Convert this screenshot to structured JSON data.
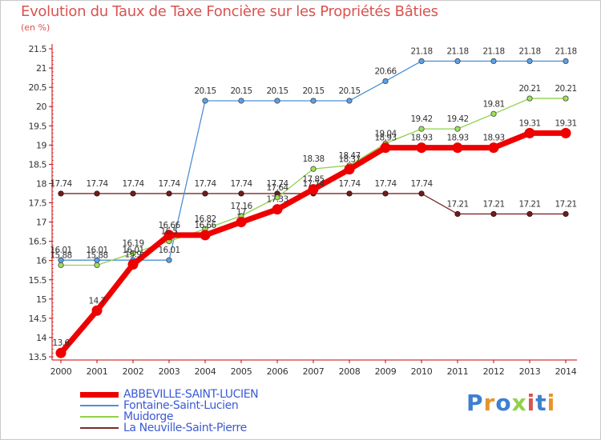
{
  "chart_data": {
    "type": "line",
    "title": "Evolution du Taux de Taxe Foncière sur les Propriétés Bâties",
    "unit": "(en %)",
    "x": [
      "2000",
      "2001",
      "2002",
      "2003",
      "2004",
      "2005",
      "2006",
      "2007",
      "2008",
      "2009",
      "2010",
      "2011",
      "2012",
      "2013",
      "2014"
    ],
    "ylim": [
      13.5,
      21.5
    ],
    "yticks": [
      "13.5",
      "14",
      "14.5",
      "15",
      "15.5",
      "16",
      "16.5",
      "17",
      "17.5",
      "18",
      "18.5",
      "19",
      "19.5",
      "20",
      "20.5",
      "21",
      "21.5"
    ],
    "grid": false,
    "legend_position": "bottom-left",
    "series": [
      {
        "name": "ABBEVILLE-SAINT-LUCIEN",
        "color": "#ee0000",
        "values": [
          13.6,
          14.7,
          15.9,
          16.66,
          16.66,
          17.0,
          17.33,
          17.85,
          18.37,
          18.93,
          18.93,
          18.93,
          18.93,
          19.31,
          19.31
        ],
        "labels": [
          "13.6",
          "14.7",
          "15.9",
          "16.66",
          "16.66",
          "17",
          "17.33",
          "17.85",
          "18.37",
          "18.93",
          "18.93",
          "18.93",
          "18.93",
          "19.31",
          "19.31"
        ]
      },
      {
        "name": "Fontaine-Saint-Lucien",
        "color": "#4a90d6",
        "values": [
          16.01,
          16.01,
          16.01,
          16.01,
          20.15,
          20.15,
          20.15,
          20.15,
          20.15,
          20.66,
          21.18,
          21.18,
          21.18,
          21.18,
          21.18
        ],
        "labels": [
          "16.01",
          "16.01",
          "16.01",
          "16.01",
          "20.15",
          "20.15",
          "20.15",
          "20.15",
          "20.15",
          "20.66",
          "21.18",
          "21.18",
          "21.18",
          "21.18",
          "21.18"
        ]
      },
      {
        "name": "Muidorge",
        "color": "#8fd24a",
        "values": [
          15.88,
          15.88,
          16.19,
          16.5,
          16.82,
          17.16,
          17.64,
          18.38,
          18.47,
          19.04,
          19.42,
          19.42,
          19.81,
          20.21,
          20.21
        ],
        "labels": [
          "15.88",
          "15.88",
          "16.19",
          "16.5",
          "16.82",
          "17.16",
          "17.64",
          "18.38",
          "18.47",
          "19.04",
          "19.42",
          "19.42",
          "19.81",
          "20.21",
          "20.21"
        ]
      },
      {
        "name": "La Neuville-Saint-Pierre",
        "color": "#7a2a2a",
        "values": [
          17.74,
          17.74,
          17.74,
          17.74,
          17.74,
          17.74,
          17.74,
          17.74,
          17.74,
          17.74,
          17.74,
          17.21,
          17.21,
          17.21,
          17.21
        ],
        "labels": [
          "17.74",
          "17.74",
          "17.74",
          "17.74",
          "17.74",
          "17.74",
          "17.74",
          "17.74",
          "17.74",
          "17.74",
          "17.74",
          "17.21",
          "17.21",
          "17.21",
          "17.21"
        ]
      }
    ]
  },
  "logo": {
    "text": "Proxiti",
    "colors": [
      "#3f7fd0",
      "#e8932b",
      "#3f7fd0",
      "#8fd24a",
      "#d9534f",
      "#3f7fd0",
      "#e8932b"
    ]
  }
}
